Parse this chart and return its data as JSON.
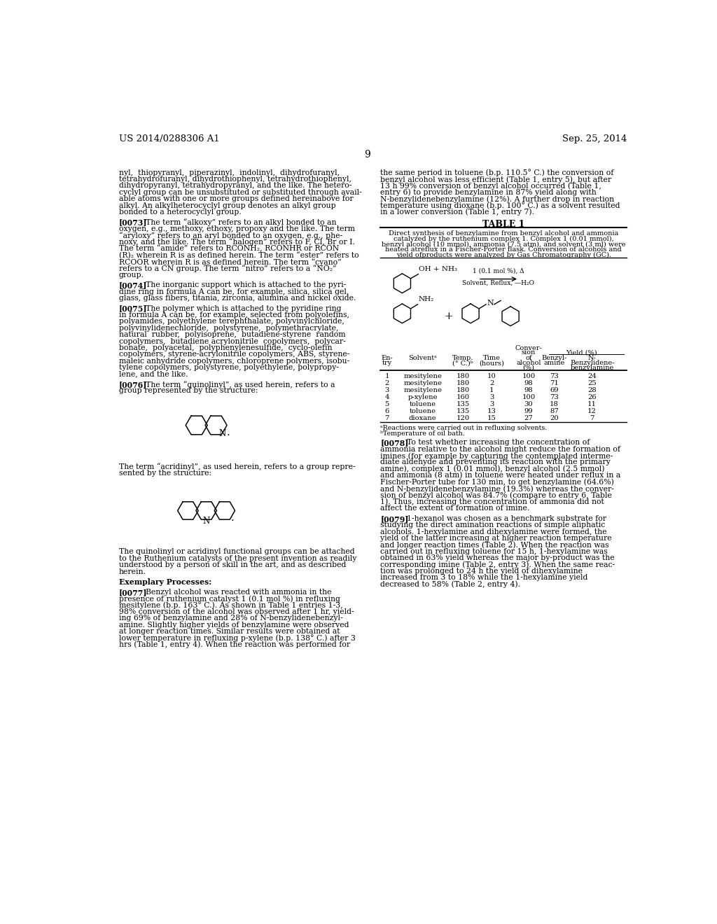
{
  "background_color": "#ffffff",
  "page_number": "9",
  "header_left": "US 2014/0288306 A1",
  "header_right": "Sep. 25, 2014",
  "left_col_lines": [
    "nyl,  thiopyranyl,  piperazinyl,  indolinyl,  dihydrofuranyl,",
    "tetrahydrofuranyl, dihydrothiophenyl, tetrahydrothiophenyl,",
    "dihydropyranyl, tetrahydropyranyl, and the like. The hetero-",
    "cyclyl group can be unsubstituted or substituted through avail-",
    "able atoms with one or more groups defined hereinabove for",
    "alkyl. An alkylheterocyclyl group denotes an alkyl group",
    "bonded to a heterocyclyl group.",
    "BLANK",
    "[0073]    The term “alkoxy” refers to an alkyl bonded to an",
    "oxygen, e.g., methoxy, ethoxy, propoxy and the like. The term",
    "“aryloxy” refers to an aryl bonded to an oxygen, e.g., phe-",
    "noxy, and the like. The term “halogen” refers to F, Cl, Br or I.",
    "The term “amide” refers to RCONH₂, RCONHR or RCON",
    "(R)₂ wherein R is as defined herein. The term “ester” refers to",
    "RCOOR wherein R is as defined herein. The term “cyano”",
    "refers to a CN group. The term “nitro” refers to a “NO₂”",
    "group.",
    "BLANK",
    "[0074]    The inorganic support which is attached to the pyri-",
    "dine ring in formula A can be, for example, silica, silica gel,",
    "glass, glass fibers, titania, zirconia, alumina and nickel oxide.",
    "BLANK",
    "[0075]    The polymer which is attached to the pyridine ring",
    "in formula A can be, for example, selected from polyolefins,",
    "polyamides, polyethylene terephthalate, polyvinylchloride,",
    "polyvinylidenechloride,  polystyrene,  polymethracrylate,",
    "natural  rubber,  polyisoprene,  butadiene-styrene  random",
    "copolymers,  butadiene acrylonitrile  copolymers,  polycar-",
    "bonate,  polyacetal,  polyphenylenesulfide,  cyclo-olefin",
    "copolymers, styrene-acrylonitrile copolymers, ABS, styrene-",
    "maleic anhydride copolymers, chloroprene polymers, isobu-",
    "tylene copolymers, polystyrene, polyethylene, polypropy-",
    "lene, and the like.",
    "BLANK",
    "[0076]    The term “quinolinyl”, as used herein, refers to a",
    "group represented by the structure:"
  ],
  "left_col_lines2": [
    "The term “acridinyl”, as used herein, refers to a group repre-",
    "sented by the structure:"
  ],
  "left_col_lines3": [
    "The quinolinyl or acridinyl functional groups can be attached",
    "to the Ruthenium catalysts of the present invention as readily",
    "understood by a person of skill in the art, and as described",
    "herein.",
    "BLANK",
    "Exemplary Processes:",
    "BLANK",
    "[0077]    Benzyl alcohol was reacted with ammonia in the",
    "presence of ruthenium catalyst 1 (0.1 mol %) in refluxing",
    "mesitylene (b.p. 163° C.). As shown in Table 1 entries 1-3,",
    "98% conversion of the alcohol was observed after 1 hr, yield-",
    "ing 69% of benzylamine and 28% of N-benzylidenebenzyl-",
    "amine. Slightly higher yields of benzylamine were observed",
    "at longer reaction times. Similar results were obtained at",
    "lower temperature in refluxing p-xylene (b.p. 138° C.) after 3",
    "hrs (Table 1, entry 4). When the reaction was performed for"
  ],
  "right_col_lines1": [
    "the same period in toluene (b.p. 110.5° C.) the conversion of",
    "benzyl alcohol was less efficient (Table 1, entry 5), but after",
    "13 h 99% conversion of benzyl alcohol occurred (Table 1,",
    "entry 6) to provide benzylamine in 87% yield along with",
    "N-benzylidenebenzylamine (12%). A further drop in reaction",
    "temperature using dioxane (b.p. 100° C.) as a solvent resulted",
    "in a lower conversion (Table 1, entry 7)."
  ],
  "table_title": "TABLE 1",
  "table_caption_lines": [
    "Direct synthesis of benzylamine from benzyl alcohol and ammonia",
    "catalyzed by the ruthenium complex 1. Complex 1 (0.01 mmol),",
    "benzyl alcohol (10 mmol), ammonia (7.5 atm), and solvent (3 ml) were",
    "heated atreflux in a Fischer-Porter flask. Conversion of alcohols and",
    "yield ofproducts were analyzed by Gas Chromatography (GC)."
  ],
  "rxn_label1": "1 (0.1 mol %), Δ",
  "rxn_label2": "Solvent, Reflux, —H₂O",
  "table_data": [
    [
      "1",
      "mesitylene",
      "180",
      "10",
      "100",
      "73",
      "24"
    ],
    [
      "2",
      "mesitylene",
      "180",
      "2",
      "98",
      "71",
      "25"
    ],
    [
      "3",
      "mesitylene",
      "180",
      "1",
      "98",
      "69",
      "28"
    ],
    [
      "4",
      "p-xylene",
      "160",
      "3",
      "100",
      "73",
      "26"
    ],
    [
      "5",
      "toluene",
      "135",
      "3",
      "30",
      "18",
      "11"
    ],
    [
      "6",
      "toluene",
      "135",
      "13",
      "99",
      "87",
      "12"
    ],
    [
      "7",
      "dioxane",
      "120",
      "15",
      "27",
      "20",
      "7"
    ]
  ],
  "footnote_a": "ᵃReactions were carried out in refluxing solvents.",
  "footnote_b": "ᵇTemperature of oil bath.",
  "right_col_lines2": [
    "[0078]    To test whether increasing the concentration of",
    "ammonia relative to the alcohol might reduce the formation of",
    "imines (for example by capturing the contemplated interme-",
    "diate aldehyde and preventing its reaction with the primary",
    "amine), complex 1 (0.01 mmol), benzyl alcohol (2.5 mmol)",
    "and ammonia (8 atm) in toluene were heated under reflux in a",
    "Fischer-Porter tube for 130 min, to get benzylamine (64.6%)",
    "and N-benzylidenebenzylamine (19.3%) whereas the conver-",
    "sion of benzyl alcohol was 84.7% (compare to entry 6, Table",
    "1). Thus, increasing the concentration of ammonia did not",
    "affect the extent of formation of imine.",
    "BLANK",
    "[0079]    1-hexanol was chosen as a benchmark substrate for",
    "studying the direct amination reactions of simple aliphatic",
    "alcohols. 1-hexylamine and dihexylamine were formed, the",
    "yield of the latter increasing at higher reaction temperature",
    "and longer reaction times (Table 2). When the reaction was",
    "carried out in refluxing toluene for 15 h, 1-hexylamine was",
    "obtained in 63% yield whereas the major by-product was the",
    "corresponding imine (Table 2, entry 3). When the same reac-",
    "tion was prolonged to 24 h the yield of dihexylamine",
    "increased from 3 to 18% while the 1-hexylamine yield",
    "decreased to 58% (Table 2, entry 4)."
  ]
}
